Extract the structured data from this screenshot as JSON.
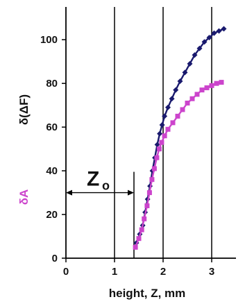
{
  "chart_data": {
    "type": "line",
    "title": "",
    "xlabel": "height, Z, mm",
    "ylabel_primary": "δ(ΔF)",
    "ylabel_secondary": "δA",
    "xlim": [
      0,
      3.5
    ],
    "ylim": [
      0,
      115
    ],
    "xticks": [
      "0",
      "1",
      "2",
      "3"
    ],
    "yticks": [
      "0",
      "20",
      "40",
      "60",
      "80",
      "100"
    ],
    "grid": "vertical",
    "annotation": {
      "main": "Z",
      "sub": "o",
      "x_from": 0,
      "x_to": 1.4,
      "y": 30
    },
    "colors": {
      "delta_f": "#1a1a6e",
      "delta_a": "#cc44cc",
      "axis": "#000000"
    },
    "series": [
      {
        "key": "delta_f",
        "marker": "diamond",
        "points": [
          [
            1.45,
            7
          ],
          [
            1.52,
            11
          ],
          [
            1.58,
            15
          ],
          [
            1.63,
            21
          ],
          [
            1.68,
            27
          ],
          [
            1.73,
            33
          ],
          [
            1.78,
            40
          ],
          [
            1.83,
            46
          ],
          [
            1.88,
            52
          ],
          [
            1.93,
            57
          ],
          [
            1.98,
            61
          ],
          [
            2.03,
            65
          ],
          [
            2.1,
            69
          ],
          [
            2.18,
            73
          ],
          [
            2.26,
            77
          ],
          [
            2.35,
            81
          ],
          [
            2.45,
            85
          ],
          [
            2.55,
            89
          ],
          [
            2.65,
            93
          ],
          [
            2.75,
            96
          ],
          [
            2.85,
            99
          ],
          [
            2.95,
            101
          ],
          [
            3.05,
            103
          ],
          [
            3.15,
            104
          ],
          [
            3.25,
            105
          ]
        ]
      },
      {
        "key": "delta_a",
        "marker": "square",
        "points": [
          [
            1.43,
            5
          ],
          [
            1.5,
            9
          ],
          [
            1.56,
            13
          ],
          [
            1.61,
            18
          ],
          [
            1.67,
            24
          ],
          [
            1.72,
            30
          ],
          [
            1.77,
            36
          ],
          [
            1.82,
            41
          ],
          [
            1.87,
            46
          ],
          [
            1.92,
            50
          ],
          [
            1.97,
            53
          ],
          [
            2.03,
            56
          ],
          [
            2.1,
            59
          ],
          [
            2.2,
            62
          ],
          [
            2.3,
            65
          ],
          [
            2.4,
            68
          ],
          [
            2.5,
            71
          ],
          [
            2.6,
            73
          ],
          [
            2.7,
            75
          ],
          [
            2.8,
            77
          ],
          [
            2.9,
            78
          ],
          [
            3.0,
            79
          ],
          [
            3.1,
            80
          ],
          [
            3.2,
            80.5
          ]
        ]
      }
    ]
  }
}
